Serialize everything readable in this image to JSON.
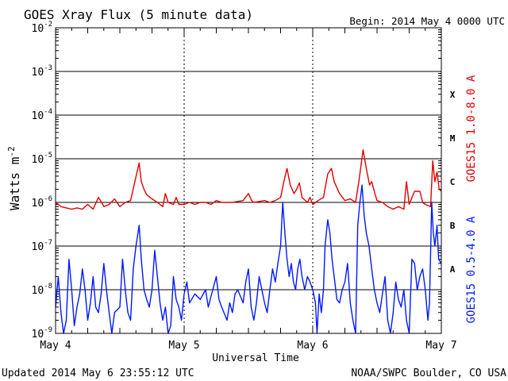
{
  "header": {
    "title": "GOES Xray Flux (5 minute data)",
    "begin": "Begin:  2014 May 4 0000 UTC"
  },
  "footer": {
    "updated": "Updated 2014 May  6 23:55:12 UTC",
    "credit": "NOAA/SWPC Boulder, CO USA"
  },
  "colors": {
    "long_channel": "#e00000",
    "short_channel": "#0018ff",
    "axes": "#000000"
  },
  "chart_data": {
    "type": "line",
    "title": "GOES Xray Flux (5 minute data)",
    "xlabel": "Universal Time",
    "ylabel": "Watts m",
    "ylabel_superscript": "-2",
    "yscale": "log",
    "ylim": [
      1e-09,
      0.01
    ],
    "xlim": [
      0,
      72
    ],
    "x_units": "hours since begin",
    "y_ticks": [
      {
        "base": "10",
        "exp": "-9",
        "value": 1e-09
      },
      {
        "base": "10",
        "exp": "-8",
        "value": 1e-08
      },
      {
        "base": "10",
        "exp": "-7",
        "value": 1e-07
      },
      {
        "base": "10",
        "exp": "-6",
        "value": 1e-06
      },
      {
        "base": "10",
        "exp": "-5",
        "value": 1e-05
      },
      {
        "base": "10",
        "exp": "-4",
        "value": 0.0001
      },
      {
        "base": "10",
        "exp": "-3",
        "value": 0.001
      },
      {
        "base": "10",
        "exp": "-2",
        "value": 0.01
      }
    ],
    "x_ticks": [
      {
        "label": "May 4",
        "hour": 0
      },
      {
        "label": "May 5",
        "hour": 24
      },
      {
        "label": "May 6",
        "hour": 48
      },
      {
        "label": "May 7",
        "hour": 72
      }
    ],
    "flare_classes": [
      {
        "label": "A",
        "value": 3e-08
      },
      {
        "label": "B",
        "value": 3e-07
      },
      {
        "label": "C",
        "value": 3e-06
      },
      {
        "label": "M",
        "value": 3e-05
      },
      {
        "label": "X",
        "value": 0.0003
      }
    ],
    "grid": "horizontal at decades",
    "series": [
      {
        "name": "GOES15 1.0-8.0 A",
        "color": "#e00000",
        "points": [
          [
            0,
            1e-06
          ],
          [
            0.5,
            9e-07
          ],
          [
            1,
            8e-07
          ],
          [
            2,
            7.5e-07
          ],
          [
            3,
            7e-07
          ],
          [
            4,
            7.5e-07
          ],
          [
            5,
            7e-07
          ],
          [
            6,
            9e-07
          ],
          [
            7,
            7e-07
          ],
          [
            8,
            1.3e-06
          ],
          [
            8.6,
            1e-06
          ],
          [
            9,
            8e-07
          ],
          [
            10,
            9e-07
          ],
          [
            11,
            1.2e-06
          ],
          [
            12,
            8e-07
          ],
          [
            13,
            1e-06
          ],
          [
            14,
            1.1e-06
          ],
          [
            14.8,
            3e-06
          ],
          [
            15.6,
            8e-06
          ],
          [
            16,
            3e-06
          ],
          [
            16.5,
            2e-06
          ],
          [
            17,
            1.5e-06
          ],
          [
            18,
            1.2e-06
          ],
          [
            19,
            1e-06
          ],
          [
            20,
            8e-07
          ],
          [
            20.5,
            1.6e-06
          ],
          [
            21,
            1e-06
          ],
          [
            22,
            9e-07
          ],
          [
            22.5,
            1.3e-06
          ],
          [
            23,
            9e-07
          ],
          [
            24,
            9e-07
          ],
          [
            25,
            1e-06
          ],
          [
            26,
            9e-07
          ],
          [
            27,
            1e-06
          ],
          [
            28,
            1e-06
          ],
          [
            29,
            9e-07
          ],
          [
            30,
            1.1e-06
          ],
          [
            31,
            1e-06
          ],
          [
            32,
            1e-06
          ],
          [
            33,
            1e-06
          ],
          [
            34,
            1.05e-06
          ],
          [
            35,
            1.1e-06
          ],
          [
            36,
            1.6e-06
          ],
          [
            36.6,
            1.1e-06
          ],
          [
            37,
            1e-06
          ],
          [
            38,
            1.05e-06
          ],
          [
            39,
            1.1e-06
          ],
          [
            40,
            1e-06
          ],
          [
            41,
            1.1e-06
          ],
          [
            42,
            1.3e-06
          ],
          [
            42.6,
            3e-06
          ],
          [
            43.2,
            6e-06
          ],
          [
            43.8,
            2.5e-06
          ],
          [
            44.5,
            1.6e-06
          ],
          [
            45,
            2e-06
          ],
          [
            45.5,
            2.8e-06
          ],
          [
            46,
            1.3e-06
          ],
          [
            47,
            1e-06
          ],
          [
            47.5,
            1.3e-06
          ],
          [
            48,
            9e-07
          ],
          [
            49,
            1.1e-06
          ],
          [
            50,
            1.3e-06
          ],
          [
            50.8,
            4.5e-06
          ],
          [
            51.5,
            6e-06
          ],
          [
            52,
            3e-06
          ],
          [
            53,
            1.6e-06
          ],
          [
            54,
            1.1e-06
          ],
          [
            55,
            1.2e-06
          ],
          [
            56,
            1e-06
          ],
          [
            56.6,
            3e-06
          ],
          [
            57.4,
            1.6e-05
          ],
          [
            58,
            6e-06
          ],
          [
            58.6,
            2.5e-06
          ],
          [
            59,
            3e-06
          ],
          [
            59.6,
            1.6e-06
          ],
          [
            60,
            1.1e-06
          ],
          [
            61,
            1e-06
          ],
          [
            62,
            8e-07
          ],
          [
            63,
            7e-07
          ],
          [
            64,
            8e-07
          ],
          [
            65,
            7e-07
          ],
          [
            65.5,
            3e-06
          ],
          [
            66,
            9e-07
          ],
          [
            67,
            1.8e-06
          ],
          [
            68,
            1.8e-06
          ],
          [
            68.5,
            1e-06
          ],
          [
            69,
            9e-07
          ],
          [
            70,
            8e-07
          ],
          [
            70.4,
            9e-06
          ],
          [
            70.8,
            3e-06
          ],
          [
            71.2,
            5e-06
          ],
          [
            71.6,
            2e-06
          ],
          [
            72,
            1.8e-06
          ]
        ]
      },
      {
        "name": "GOES15 0.5-4.0 A",
        "color": "#0018ff",
        "points": [
          [
            0,
            4e-09
          ],
          [
            0.5,
            2e-08
          ],
          [
            1,
            3e-09
          ],
          [
            1.5,
            1e-09
          ],
          [
            2,
            2e-09
          ],
          [
            2.5,
            5e-08
          ],
          [
            3,
            1e-08
          ],
          [
            3.5,
            1.5e-09
          ],
          [
            4,
            4e-09
          ],
          [
            4.5,
            8e-09
          ],
          [
            5,
            3e-08
          ],
          [
            5.5,
            1e-08
          ],
          [
            6,
            2e-09
          ],
          [
            6.5,
            5e-09
          ],
          [
            7,
            2e-08
          ],
          [
            7.5,
            4e-09
          ],
          [
            8,
            3e-09
          ],
          [
            8.5,
            8e-09
          ],
          [
            9,
            4e-08
          ],
          [
            9.5,
            1e-08
          ],
          [
            10,
            3e-09
          ],
          [
            10.5,
            1e-09
          ],
          [
            11,
            3e-09
          ],
          [
            12,
            4e-09
          ],
          [
            12.5,
            5e-08
          ],
          [
            13,
            1e-08
          ],
          [
            13.5,
            3e-09
          ],
          [
            14,
            2e-09
          ],
          [
            14.5,
            3e-08
          ],
          [
            15,
            1e-07
          ],
          [
            15.6,
            3e-07
          ],
          [
            16,
            5e-08
          ],
          [
            16.5,
            1e-08
          ],
          [
            17,
            6e-09
          ],
          [
            17.5,
            4e-09
          ],
          [
            18,
            1e-08
          ],
          [
            18.5,
            8e-08
          ],
          [
            19,
            2e-08
          ],
          [
            19.5,
            5e-09
          ],
          [
            20,
            2e-09
          ],
          [
            20.5,
            4e-09
          ],
          [
            21,
            1e-09
          ],
          [
            21.5,
            1.5e-09
          ],
          [
            22,
            2e-08
          ],
          [
            22.5,
            6e-09
          ],
          [
            23,
            4e-09
          ],
          [
            23.5,
            2e-09
          ],
          [
            24,
            8e-09
          ],
          [
            24.5,
            1.5e-08
          ],
          [
            25,
            5e-09
          ],
          [
            26,
            8e-09
          ],
          [
            27,
            6e-09
          ],
          [
            28,
            1e-08
          ],
          [
            28.5,
            4e-09
          ],
          [
            29,
            7e-09
          ],
          [
            30,
            2e-08
          ],
          [
            30.5,
            6e-09
          ],
          [
            31,
            4e-09
          ],
          [
            32,
            2e-09
          ],
          [
            32.5,
            5e-09
          ],
          [
            33,
            3e-09
          ],
          [
            33.5,
            8e-09
          ],
          [
            34,
            1e-08
          ],
          [
            35,
            5e-09
          ],
          [
            35.5,
            1.5e-08
          ],
          [
            36,
            3e-08
          ],
          [
            36.5,
            4e-09
          ],
          [
            37,
            2e-09
          ],
          [
            37.5,
            5e-09
          ],
          [
            38,
            2e-08
          ],
          [
            38.5,
            1e-08
          ],
          [
            39,
            5e-09
          ],
          [
            39.5,
            3e-09
          ],
          [
            40,
            1e-08
          ],
          [
            40.5,
            3e-08
          ],
          [
            41,
            1.5e-08
          ],
          [
            41.5,
            4e-08
          ],
          [
            42,
            1e-07
          ],
          [
            42.4,
            1e-06
          ],
          [
            42.8,
            2e-07
          ],
          [
            43.2,
            5e-08
          ],
          [
            43.6,
            2e-08
          ],
          [
            44,
            4e-08
          ],
          [
            44.4,
            1.5e-08
          ],
          [
            44.8,
            1e-08
          ],
          [
            45.2,
            3e-08
          ],
          [
            45.6,
            5e-08
          ],
          [
            46,
            2e-08
          ],
          [
            46.5,
            1e-08
          ],
          [
            47,
            2e-08
          ],
          [
            47.5,
            1.5e-08
          ],
          [
            48,
            1e-08
          ],
          [
            48.5,
            5e-09
          ],
          [
            48.8,
            1e-09
          ],
          [
            49.2,
            8e-09
          ],
          [
            49.6,
            3e-09
          ],
          [
            50,
            1e-08
          ],
          [
            50.3,
            1e-07
          ],
          [
            50.8,
            4e-07
          ],
          [
            51.2,
            2e-07
          ],
          [
            51.6,
            5e-08
          ],
          [
            52,
            2e-08
          ],
          [
            52.5,
            6e-09
          ],
          [
            53,
            5e-09
          ],
          [
            53.5,
            1e-08
          ],
          [
            54,
            1.5e-08
          ],
          [
            54.5,
            4e-08
          ],
          [
            55,
            5e-09
          ],
          [
            55.5,
            2e-09
          ],
          [
            56,
            1e-09
          ],
          [
            56.4,
            3e-07
          ],
          [
            56.8,
            1e-06
          ],
          [
            57.2,
            2.5e-06
          ],
          [
            57.6,
            5e-07
          ],
          [
            58,
            2e-07
          ],
          [
            58.5,
            1e-07
          ],
          [
            59,
            3e-08
          ],
          [
            59.5,
            1e-08
          ],
          [
            60,
            5e-09
          ],
          [
            60.5,
            3e-09
          ],
          [
            61,
            8e-09
          ],
          [
            61.5,
            2e-08
          ],
          [
            62,
            2e-09
          ],
          [
            62.5,
            1e-09
          ],
          [
            63,
            3e-09
          ],
          [
            63.5,
            1.5e-08
          ],
          [
            64,
            6e-09
          ],
          [
            64.5,
            4e-09
          ],
          [
            65,
            1e-08
          ],
          [
            65.5,
            2e-09
          ],
          [
            66,
            1e-09
          ],
          [
            66.5,
            5e-08
          ],
          [
            67,
            4e-08
          ],
          [
            67.5,
            1e-08
          ],
          [
            68,
            2e-08
          ],
          [
            68.5,
            3e-08
          ],
          [
            69,
            1e-08
          ],
          [
            69.5,
            2e-09
          ],
          [
            69.8,
            5e-09
          ],
          [
            70.2,
            1e-06
          ],
          [
            70.5,
            2e-07
          ],
          [
            70.8,
            1e-07
          ],
          [
            71.2,
            3e-07
          ],
          [
            71.5,
            5e-08
          ],
          [
            72,
            4e-08
          ]
        ]
      }
    ]
  }
}
